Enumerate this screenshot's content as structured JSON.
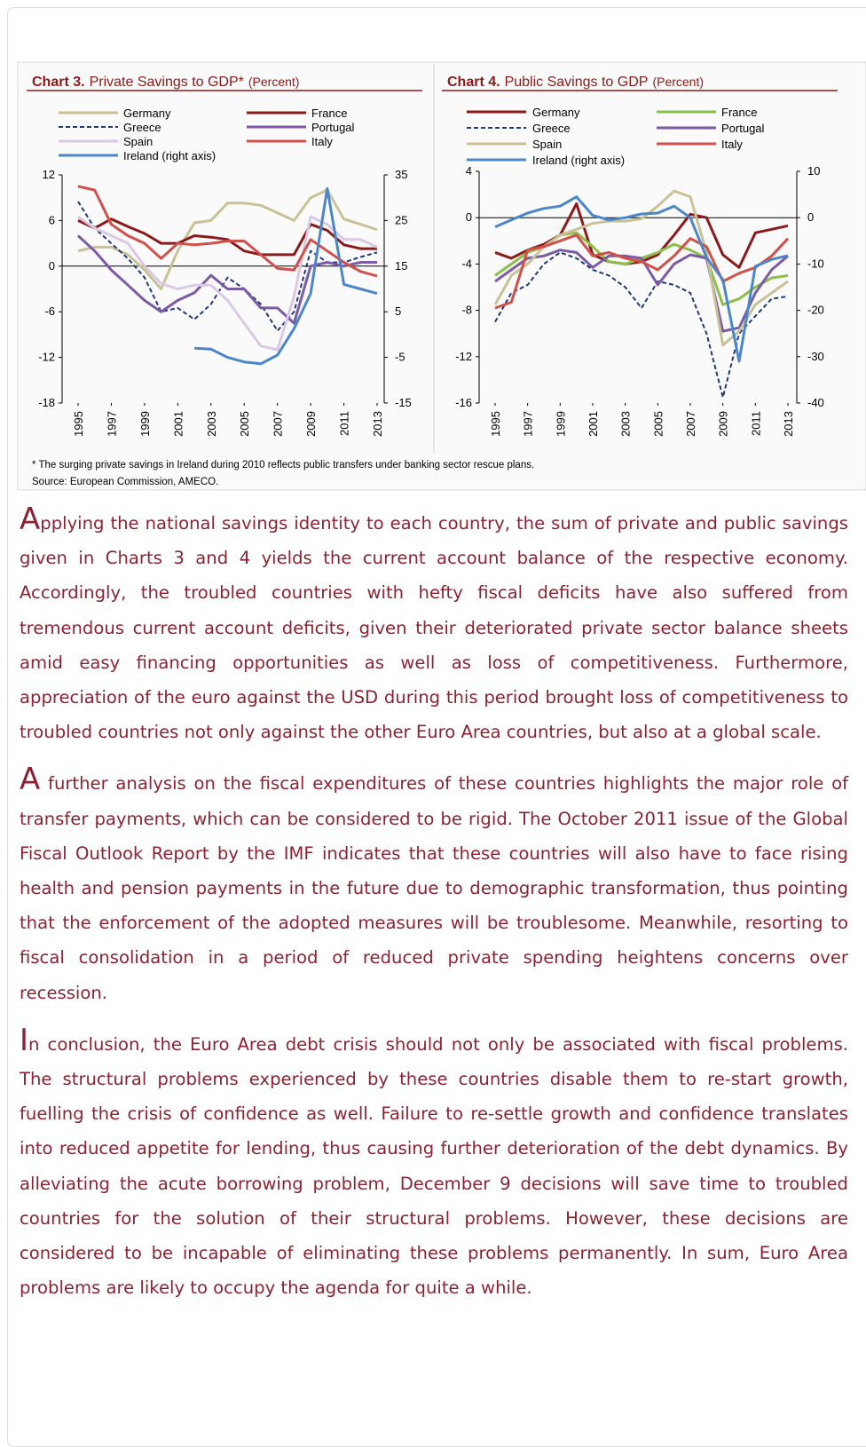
{
  "chart_data": [
    {
      "type": "line",
      "label": "Chart 3.",
      "title": "Private Savings to GDP*",
      "unit": "(Percent)",
      "x": [
        1995,
        1996,
        1997,
        1998,
        1999,
        2000,
        2001,
        2002,
        2003,
        2004,
        2005,
        2006,
        2007,
        2008,
        2009,
        2010,
        2011,
        2012,
        2013
      ],
      "xticks": [
        1995,
        1997,
        1999,
        2001,
        2003,
        2005,
        2007,
        2009,
        2011,
        2013
      ],
      "ylim": [
        -18,
        12
      ],
      "yticks": [
        -18,
        -12,
        -6,
        0,
        6,
        12
      ],
      "y2lim": [
        -15,
        35
      ],
      "y2ticks": [
        -15,
        -5,
        5,
        15,
        25,
        35
      ],
      "series": [
        {
          "name": "Germany",
          "color": "#c9c197",
          "values": [
            2,
            2.5,
            2.5,
            1.5,
            -0.5,
            -3,
            2,
            5.7,
            6,
            8.3,
            8.3,
            8,
            7,
            6,
            9,
            10,
            6.2,
            5.5,
            4.8
          ]
        },
        {
          "name": "France",
          "color": "#8b1a1a",
          "values": [
            6,
            5,
            6.2,
            5.2,
            4.3,
            3,
            3,
            4,
            3.8,
            3.5,
            2,
            1.5,
            1.5,
            1.5,
            5.5,
            4.7,
            2.8,
            2.3,
            2.3
          ]
        },
        {
          "name": "Greece",
          "color": "#1f3a7a",
          "dash": true,
          "values": [
            8.5,
            5,
            3,
            1,
            -1.5,
            -6,
            -5.5,
            -7,
            -5,
            -1.5,
            -3,
            -5,
            -8.5,
            -6,
            2,
            0.5,
            0.5,
            1.2,
            1.8
          ]
        },
        {
          "name": "Portugal",
          "color": "#7b5aa6",
          "values": [
            4,
            2,
            -0.5,
            -2.5,
            -4.5,
            -6,
            -4.5,
            -3.5,
            -1.2,
            -3,
            -3,
            -5.5,
            -5.5,
            -7.5,
            0,
            0.5,
            0,
            0.5,
            0.5
          ]
        },
        {
          "name": "Spain",
          "color": "#d9c9e5",
          "values": [
            6.5,
            5,
            4,
            3,
            0,
            -2.3,
            -3,
            -2.5,
            -2.5,
            -4.5,
            -7.5,
            -10.5,
            -11,
            -4,
            6.5,
            5.5,
            3.5,
            3.5,
            2.5
          ]
        },
        {
          "name": "Italy",
          "color": "#d0504a",
          "values": [
            10.5,
            10,
            5.5,
            4,
            3,
            1,
            3,
            2.8,
            3,
            3.3,
            3.3,
            1.5,
            -0.3,
            -0.5,
            3.5,
            2,
            0.5,
            -0.7,
            -1.3
          ]
        },
        {
          "name": "Ireland (right axis)",
          "color": "#4a86c8",
          "axis": "y2",
          "values": [
            null,
            null,
            null,
            null,
            null,
            null,
            null,
            -3,
            -3.2,
            -5,
            -6,
            -6.4,
            -4.5,
            1.3,
            9,
            32,
            11,
            10,
            9
          ]
        }
      ]
    },
    {
      "type": "line",
      "label": "Chart 4.",
      "title": "Public Savings to GDP",
      "unit": "(Percent)",
      "x": [
        1995,
        1996,
        1997,
        1998,
        1999,
        2000,
        2001,
        2002,
        2003,
        2004,
        2005,
        2006,
        2007,
        2008,
        2009,
        2010,
        2011,
        2012,
        2013
      ],
      "xticks": [
        1995,
        1997,
        1999,
        2001,
        2003,
        2005,
        2007,
        2009,
        2011,
        2013
      ],
      "ylim": [
        -16,
        4
      ],
      "yticks": [
        -16,
        -12,
        -8,
        -4,
        0,
        4
      ],
      "y2lim": [
        -40,
        10
      ],
      "y2ticks": [
        -40,
        -30,
        -20,
        -10,
        0,
        10
      ],
      "series": [
        {
          "name": "Germany",
          "color": "#8b1a1a",
          "values": [
            -3,
            -3.5,
            -2.8,
            -2.3,
            -1.5,
            1.2,
            -3.2,
            -3.8,
            -4,
            -3.8,
            -3.2,
            -1.5,
            0.3,
            0,
            -3.2,
            -4.3,
            -1.3,
            -1,
            -0.7
          ]
        },
        {
          "name": "France",
          "color": "#8cbf4a",
          "values": [
            -5,
            -4,
            -3,
            -2.5,
            -1.5,
            -1.3,
            -2.5,
            -3.8,
            -4,
            -3.5,
            -3,
            -2.3,
            -2.8,
            -3.5,
            -7.5,
            -7,
            -6,
            -5.2,
            -5
          ]
        },
        {
          "name": "Greece",
          "color": "#1f3a7a",
          "dash": true,
          "values": [
            -9,
            -6.5,
            -5.8,
            -4,
            -3,
            -3.5,
            -4.5,
            -5,
            -6,
            -7.8,
            -5.5,
            -5.8,
            -6.5,
            -10,
            -15.5,
            -10,
            -8.5,
            -7,
            -6.8
          ]
        },
        {
          "name": "Portugal",
          "color": "#7b5aa6",
          "values": [
            -5.5,
            -4.5,
            -3.5,
            -3.3,
            -2.8,
            -3,
            -4.3,
            -3.3,
            -3.3,
            -3.5,
            -5.8,
            -4,
            -3.2,
            -3.5,
            -9.8,
            -9.5,
            -6.5,
            -4.5,
            -3.3
          ]
        },
        {
          "name": "Spain",
          "color": "#c9c197",
          "values": [
            -7.5,
            -5,
            -4,
            -2.5,
            -1.5,
            -1,
            -0.5,
            -0.3,
            -0.3,
            -0.1,
            1,
            2.3,
            1.8,
            -3,
            -11,
            -9.8,
            -7.5,
            -6.5,
            -5.5
          ]
        },
        {
          "name": "Italy",
          "color": "#d0504a",
          "values": [
            -7.8,
            -7.3,
            -2.8,
            -2.5,
            -2,
            -1.5,
            -3.3,
            -3,
            -3.5,
            -3.8,
            -4.5,
            -3.3,
            -1.8,
            -2.5,
            -5.5,
            -4.8,
            -4.3,
            -3.3,
            -1.8
          ]
        },
        {
          "name": "Ireland (right axis)",
          "color": "#4a86c8",
          "axis": "y2",
          "values": [
            -2,
            -0.5,
            1,
            2,
            2.5,
            4.5,
            0.5,
            -0.5,
            0,
            0.8,
            1,
            2.5,
            0,
            -8.6,
            -13.4,
            -31,
            -10.5,
            -9,
            -8.2
          ]
        }
      ]
    }
  ],
  "footnote": "* The surging private savings in Ireland during 2010 reflects public transfers under banking sector rescue plans.",
  "source": "Source: European Commission, AMECO.",
  "paragraphs": [
    "Applying the national savings identity to each country, the sum of private and public savings given in Charts 3 and 4 yields the current account balance of the respective economy. Accordingly, the troubled countries with hefty fiscal deficits have also suffered from tremendous current account deficits, given their deteriorated private sector balance sheets amid easy financing opportunities as well as loss of competitiveness. Furthermore, appreciation of the euro against the USD during this period brought loss of competitiveness to troubled countries not only against the other Euro Area countries, but also at a global scale.",
    "A further analysis on the fiscal expenditures of these countries highlights the major role of transfer payments, which can be considered to be rigid. The October 2011 issue of the Global Fiscal Outlook Report by the IMF indicates that these countries will also have to face rising health and pension payments in the future due to demographic transformation, thus pointing that the enforcement of the adopted measures will be troublesome. Meanwhile, resorting to fiscal consolidation in a period of reduced private spending heightens concerns over recession.",
    "In conclusion, the Euro Area debt crisis should not only be associated with fiscal problems. The structural problems experienced by these countries disable them to re-start growth, fuelling the crisis of confidence as well. Failure to re-settle growth and confidence translates into reduced appetite for lending, thus causing further deterioration of the debt dynamics. By alleviating the acute borrowing problem, December 9 decisions will save time to troubled countries for the solution of their structural problems. However, these decisions are considered to be incapable of eliminating these problems permanently. In sum, Euro Area problems are likely to occupy the agenda for quite a while."
  ]
}
